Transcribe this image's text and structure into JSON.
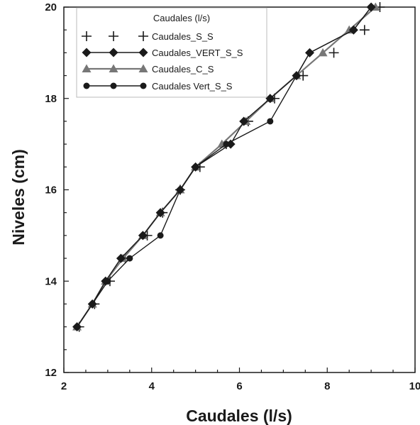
{
  "chart_data": {
    "type": "line",
    "title": "",
    "xlabel": "Caudales (l/s)",
    "ylabel": "Niveles (cm)",
    "xlim": [
      2,
      10
    ],
    "ylim": [
      12,
      20
    ],
    "x_ticks": [
      "2",
      "4",
      "6",
      "8",
      "10"
    ],
    "y_ticks": [
      "12",
      "14",
      "16",
      "18",
      "20"
    ],
    "grid": false,
    "legend": {
      "title": "Caudales (l/s)",
      "position": "top-left"
    },
    "series": [
      {
        "name": "Caudales_S_S",
        "marker": "plus",
        "color": "#1a1a1a",
        "points": [
          [
            2.35,
            13.0
          ],
          [
            2.7,
            13.5
          ],
          [
            3.05,
            14.0
          ],
          [
            3.4,
            14.5
          ],
          [
            3.9,
            15.0
          ],
          [
            4.25,
            15.5
          ],
          [
            4.65,
            16.0
          ],
          [
            5.1,
            16.5
          ],
          [
            5.7,
            17.0
          ],
          [
            6.2,
            17.5
          ],
          [
            6.8,
            18.0
          ],
          [
            7.45,
            18.5
          ],
          [
            8.15,
            19.0
          ],
          [
            8.85,
            19.5
          ],
          [
            9.2,
            20.0
          ]
        ]
      },
      {
        "name": "Caudales_VERT_S_S",
        "marker": "diamond",
        "color": "#1a1a1a",
        "points": [
          [
            2.3,
            13.0
          ],
          [
            2.65,
            13.5
          ],
          [
            2.95,
            14.0
          ],
          [
            3.3,
            14.5
          ],
          [
            3.8,
            15.0
          ],
          [
            4.2,
            15.5
          ],
          [
            4.65,
            16.0
          ],
          [
            5.0,
            16.5
          ],
          [
            5.8,
            17.0
          ],
          [
            6.1,
            17.5
          ],
          [
            6.7,
            18.0
          ],
          [
            7.3,
            18.5
          ],
          [
            7.6,
            19.0
          ],
          [
            8.6,
            19.5
          ],
          [
            9.0,
            20.0
          ]
        ]
      },
      {
        "name": "Caudales_C_S",
        "marker": "triangle",
        "color": "#777777",
        "points": [
          [
            2.3,
            13.0
          ],
          [
            2.65,
            13.5
          ],
          [
            2.95,
            14.0
          ],
          [
            3.35,
            14.5
          ],
          [
            3.8,
            15.0
          ],
          [
            4.2,
            15.5
          ],
          [
            4.65,
            16.0
          ],
          [
            5.0,
            16.5
          ],
          [
            5.6,
            17.0
          ],
          [
            6.15,
            17.5
          ],
          [
            6.7,
            18.0
          ],
          [
            7.3,
            18.5
          ],
          [
            7.9,
            19.0
          ],
          [
            8.5,
            19.5
          ],
          [
            9.1,
            20.0
          ]
        ]
      },
      {
        "name": "Caudales Vert_S_S",
        "marker": "circle",
        "color": "#1a1a1a",
        "points": [
          [
            2.3,
            13.0
          ],
          [
            3.0,
            14.0
          ],
          [
            3.5,
            14.5
          ],
          [
            4.2,
            15.0
          ],
          [
            4.65,
            16.0
          ],
          [
            5.0,
            16.5
          ],
          [
            5.7,
            17.0
          ],
          [
            6.7,
            17.5
          ],
          [
            7.6,
            19.0
          ],
          [
            8.6,
            19.5
          ],
          [
            9.0,
            20.0
          ]
        ]
      }
    ]
  }
}
